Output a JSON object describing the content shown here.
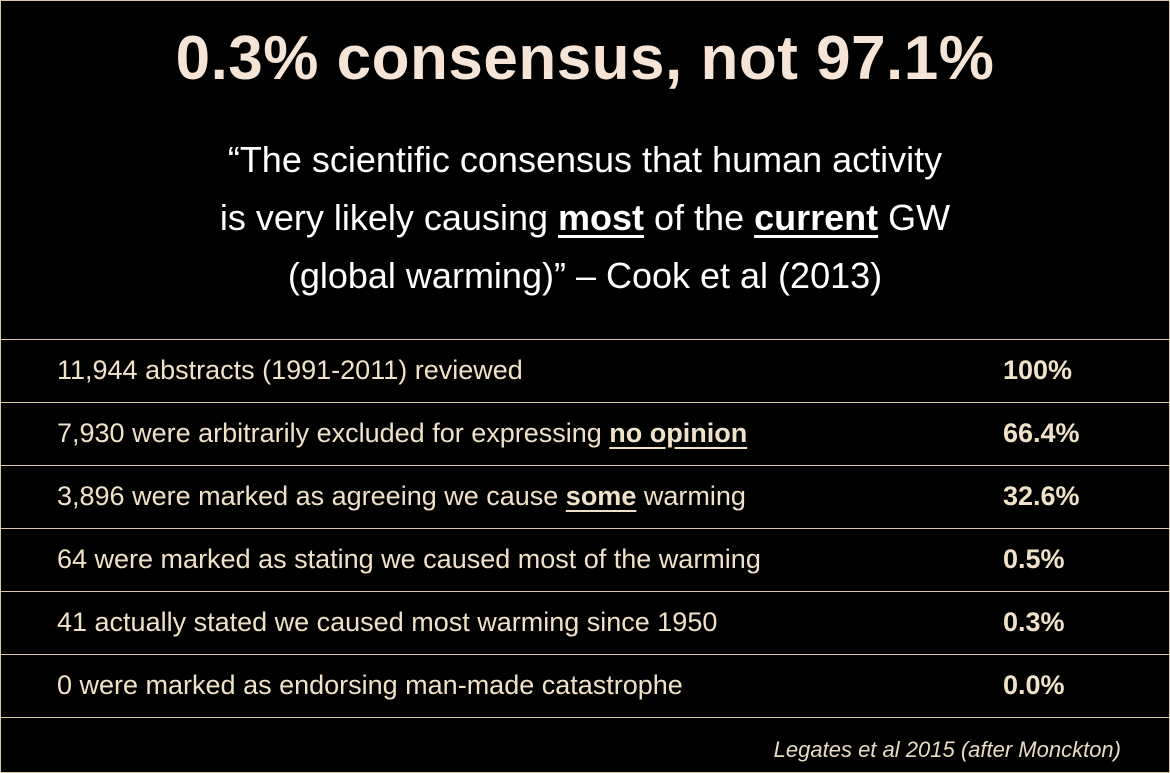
{
  "header": {
    "title": "0.3% consensus, not 97.1%",
    "quote_lines": [
      {
        "parts": [
          {
            "text": "“The scientific consensus that human activity"
          }
        ]
      },
      {
        "parts": [
          {
            "text": "is very likely causing "
          },
          {
            "text": "most",
            "bold_underline": true
          },
          {
            "text": " of the "
          },
          {
            "text": "current",
            "bold_underline": true
          },
          {
            "text": " GW"
          }
        ]
      },
      {
        "parts": [
          {
            "text": "(global warming)” – Cook et al (2013)"
          }
        ]
      }
    ]
  },
  "table": {
    "rows": [
      {
        "parts": [
          {
            "text": "11,944 abstracts (1991-2011) reviewed"
          }
        ],
        "percent": "100%"
      },
      {
        "parts": [
          {
            "text": "7,930 were arbitrarily excluded for expressing "
          },
          {
            "text": "no opinion",
            "bold_underline": true
          }
        ],
        "percent": "66.4%"
      },
      {
        "parts": [
          {
            "text": "3,896 were marked as agreeing we cause "
          },
          {
            "text": "some",
            "bold_underline": true
          },
          {
            "text": " warming"
          }
        ],
        "percent": "32.6%"
      },
      {
        "parts": [
          {
            "text": "64 were marked as stating we caused most of the warming"
          }
        ],
        "percent": "0.5%"
      },
      {
        "parts": [
          {
            "text": "41 actually stated we caused most warming since 1950"
          }
        ],
        "percent": "0.3%"
      },
      {
        "parts": [
          {
            "text": "0 were marked as endorsing man-made catastrophe"
          }
        ],
        "percent": "0.0%"
      }
    ]
  },
  "footer": {
    "credit": "Legates et al 2015  (after Monckton)"
  }
}
